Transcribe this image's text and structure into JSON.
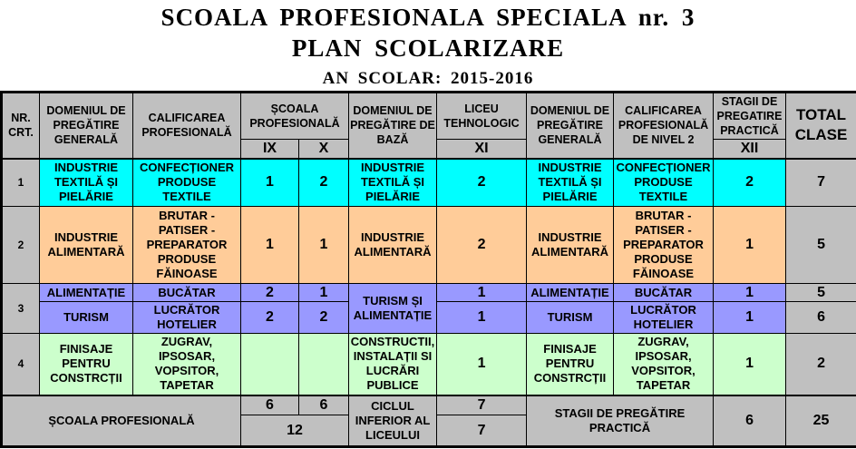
{
  "title": {
    "school": "SCOALA PROFESIONALA SPECIALA nr. 3",
    "plan": "PLAN SCOLARIZARE",
    "year": "AN SCOLAR: 2015-2016"
  },
  "headers": {
    "nr": "NR. CRT.",
    "domeniu_general": "DOMENIUL DE PREGĂTIRE GENERALĂ",
    "calificare": "CALIFICAREA PROFESIONALĂ",
    "scoala_prof": "ȘCOALA PROFESIONALĂ",
    "ix": "IX",
    "x": "X",
    "domeniu_baza": "DOMENIUL DE PREGĂTIRE DE BAZĂ",
    "liceu": "LICEU TEHNOLOGIC",
    "xi": "XI",
    "domeniu_general2": "DOMENIUL DE PREGĂTIRE GENERALĂ",
    "calificare2": "CALIFICAREA PROFESIONALĂ DE NIVEL 2",
    "stagii": "STAGII DE PREGATIRE PRACTICĂ",
    "xii": "XII",
    "total": "TOTAL CLASE"
  },
  "colors": {
    "row1": "#00ffff",
    "row2": "#ffcc99",
    "row3": "#9999ff",
    "row4": "#ccffcc",
    "header": "#c0c0c0"
  },
  "rows": [
    {
      "nr": "1",
      "domeniu": "INDUSTRIE TEXTILĂ ȘI PIELĂRIE",
      "calificare": "CONFECȚIONER PRODUSE TEXTILE",
      "ix": "1",
      "x": "2",
      "domeniu_baza": "INDUSTRIE TEXTILĂ ȘI PIELĂRIE",
      "xi": "2",
      "domeniu2": "INDUSTRIE TEXTILĂ ȘI PIELĂRIE",
      "calificare2": "CONFECȚIONER PRODUSE TEXTILE",
      "xii": "2",
      "total": "7"
    },
    {
      "nr": "2",
      "domeniu": "INDUSTRIE ALIMENTARĂ",
      "calificare": "BRUTAR - PATISER - PREPARATOR PRODUSE FĂINOASE",
      "ix": "1",
      "x": "1",
      "domeniu_baza": "INDUSTRIE ALIMENTARĂ",
      "xi": "2",
      "domeniu2": "INDUSTRIE ALIMENTARĂ",
      "calificare2": "BRUTAR - PATISER - PREPARATOR PRODUSE FĂINOASE",
      "xii": "1",
      "total": "5"
    },
    {
      "nr": "3",
      "domeniu_baza": "TURISM ȘI ALIMENTAȚIE",
      "sub": [
        {
          "domeniu": "ALIMENTAȚIE",
          "calificare": "BUCĂTAR",
          "ix": "2",
          "x": "1",
          "xi": "1",
          "domeniu2": "ALIMENTAȚIE",
          "calificare2": "BUCĂTAR",
          "xii": "1",
          "total": "5"
        },
        {
          "domeniu": "TURISM",
          "calificare": "LUCRĂTOR HOTELIER",
          "ix": "2",
          "x": "2",
          "xi": "1",
          "domeniu2": "TURISM",
          "calificare2": "LUCRĂTOR HOTELIER",
          "xii": "1",
          "total": "6"
        }
      ]
    },
    {
      "nr": "4",
      "domeniu": "FINISAJE PENTRU CONSTRCȚII",
      "calificare": "ZUGRAV, IPSOSAR, VOPSITOR, TAPETAR",
      "ix": "",
      "x": "",
      "domeniu_baza": "CONSTRUCTII, INSTALAȚII SI LUCRĂRI PUBLICE",
      "xi": "1",
      "domeniu2": "FINISAJE PENTRU CONSTRCȚII",
      "calificare2": "ZUGRAV, IPSOSAR, VOPSITOR, TAPETAR",
      "xii": "1",
      "total": "2"
    }
  ],
  "footer": {
    "scoala_label": "ȘCOALA PROFESIONALĂ",
    "ix_total": "6",
    "x_total": "6",
    "scoala_total": "12",
    "ciclul_label": "CICLUL INFERIOR AL LICEULUI",
    "xi_total": "7",
    "liceu_total": "7",
    "stagii_label": "STAGII DE PREGĂTIRE PRACTICĂ",
    "stagii_total": "6",
    "grand_total": "25"
  }
}
